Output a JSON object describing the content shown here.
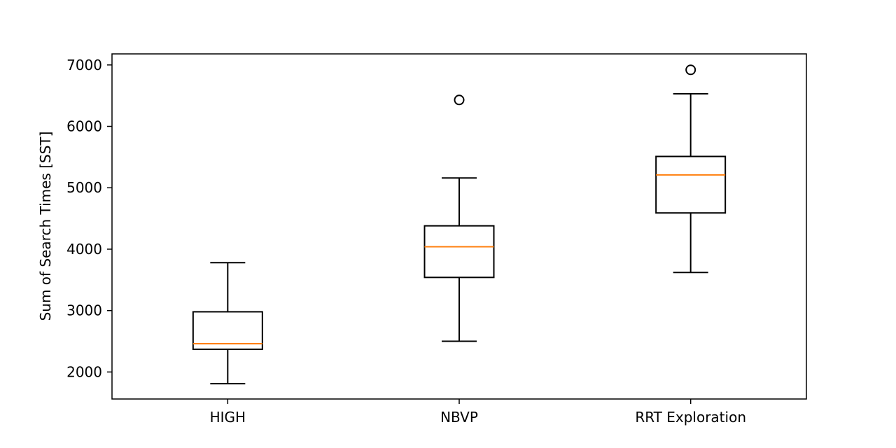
{
  "chart_data": {
    "type": "box",
    "title": "",
    "xlabel": "",
    "ylabel": "Sum of Search Times [SST]",
    "ylim": [
      1560,
      7180
    ],
    "yticks": [
      2000,
      3000,
      4000,
      5000,
      6000,
      7000
    ],
    "grid": false,
    "categories": [
      "HIGH",
      "NBVP",
      "RRT Exploration"
    ],
    "boxes": [
      {
        "category": "HIGH",
        "whisker_low": 1810,
        "q1": 2370,
        "median": 2460,
        "q3": 2980,
        "whisker_high": 3780,
        "outliers": []
      },
      {
        "category": "NBVP",
        "whisker_low": 2500,
        "q1": 3540,
        "median": 4040,
        "q3": 4380,
        "whisker_high": 5160,
        "outliers": [
          6430
        ]
      },
      {
        "category": "RRT Exploration",
        "whisker_low": 3620,
        "q1": 4590,
        "median": 5210,
        "q3": 5510,
        "whisker_high": 6530,
        "outliers": [
          6920
        ]
      }
    ],
    "colors": {
      "box": "#000000",
      "median": "#ff7f0e",
      "outlier": "#000000"
    }
  }
}
